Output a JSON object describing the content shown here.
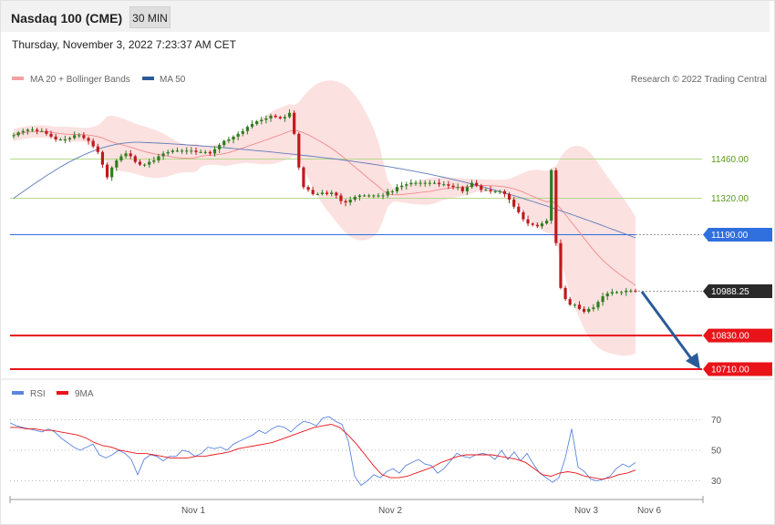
{
  "header": {
    "title": "Nasdaq 100 (CME)",
    "timeframe": "30 MIN",
    "datetime": "Thursday, November 3, 2022 7:23:37 AM CET"
  },
  "legend": {
    "ma20": "MA 20 + Bollinger Bands",
    "ma50": "MA 50",
    "credit": "Research © 2022 Trading Central",
    "rsi": "RSI",
    "rsi_ma": "9MA"
  },
  "colors": {
    "up": "#2e7d1e",
    "down": "#c0191c",
    "bands": "#fcdcdc",
    "ma20": "#f08a8a",
    "ma50": "#5d7ab8",
    "resistance": "#b5d98a",
    "pivot": "#2f6fde",
    "support": "#e8141a",
    "arrow": "#2b5b99",
    "last": "#2a2a2a"
  },
  "chart_data": [
    {
      "type": "candlestick",
      "indicators": [
        "MA 20 + Bollinger Bands",
        "MA 50"
      ],
      "levels": [
        {
          "label": "11460.00",
          "value": 11460.0,
          "kind": "resistance"
        },
        {
          "label": "11320.00",
          "value": 11320.0,
          "kind": "resistance"
        },
        {
          "label": "11190.00",
          "value": 11190.0,
          "kind": "pivot"
        },
        {
          "label": "10988.25",
          "value": 10988.25,
          "kind": "last"
        },
        {
          "label": "10830.00",
          "value": 10830.0,
          "kind": "support"
        },
        {
          "label": "10710.00",
          "value": 10710.0,
          "kind": "support"
        }
      ],
      "xticks": [
        "Nov 1",
        "Nov 2",
        "Nov 3",
        "Nov 6"
      ],
      "close_series": [
        11545,
        11555,
        11560,
        11565,
        11565,
        11560,
        11560,
        11550,
        11540,
        11530,
        11530,
        11530,
        11535,
        11545,
        11545,
        11535,
        11525,
        11505,
        11485,
        11440,
        11395,
        11430,
        11455,
        11470,
        11480,
        11470,
        11450,
        11440,
        11440,
        11450,
        11455,
        11470,
        11480,
        11485,
        11490,
        11490,
        11490,
        11490,
        11490,
        11485,
        11485,
        11485,
        11480,
        11495,
        11510,
        11525,
        11530,
        11540,
        11550,
        11560,
        11575,
        11585,
        11595,
        11600,
        11605,
        11615,
        11610,
        11605,
        11610,
        11625,
        11550,
        11430,
        11360,
        11350,
        11335,
        11335,
        11340,
        11335,
        11340,
        11330,
        11310,
        11305,
        11315,
        11325,
        11330,
        11330,
        11330,
        11330,
        11330,
        11330,
        11345,
        11345,
        11360,
        11365,
        11370,
        11375,
        11375,
        11375,
        11375,
        11375,
        11375,
        11370,
        11370,
        11365,
        11360,
        11360,
        11345,
        11360,
        11375,
        11365,
        11350,
        11350,
        11345,
        11345,
        11345,
        11335,
        11315,
        11290,
        11270,
        11245,
        11230,
        11225,
        11220,
        11230,
        11240,
        11420,
        11160,
        11000,
        10960,
        10940,
        10940,
        10925,
        10915,
        10925,
        10930,
        10950,
        10970,
        10980,
        10985,
        10985,
        10985,
        10990,
        10990,
        10988.25
      ],
      "ma50_start": 11320,
      "ma50_peak": 11520,
      "ma50_end": 11185,
      "rsi": {
        "levels": [
          70,
          50,
          30
        ],
        "rsi_series": [
          68,
          66,
          65,
          64,
          63,
          62,
          64,
          62,
          58,
          55,
          52,
          50,
          52,
          54,
          47,
          45,
          47,
          50,
          48,
          44,
          34,
          44,
          47,
          46,
          43,
          46,
          46,
          50,
          49,
          46,
          48,
          52,
          51,
          52,
          50,
          54,
          56,
          58,
          60,
          63,
          61,
          64,
          66,
          65,
          62,
          66,
          69,
          68,
          66,
          71,
          72,
          69,
          67,
          56,
          33,
          27,
          30,
          34,
          32,
          36,
          38,
          35,
          40,
          42,
          44,
          41,
          40,
          35,
          38,
          43,
          48,
          46,
          45,
          47,
          48,
          47,
          44,
          50,
          44,
          49,
          43,
          48,
          41,
          35,
          32,
          29,
          32,
          45,
          64,
          39,
          36,
          31,
          30,
          31,
          33,
          38,
          41,
          39,
          42
        ],
        "ma_series": [
          65,
          65,
          64,
          64,
          63,
          63,
          62,
          61,
          60,
          58,
          55,
          53,
          52,
          50,
          49,
          48,
          48,
          47,
          46,
          45,
          45,
          45,
          46,
          46,
          47,
          48,
          49,
          51,
          52,
          53,
          54,
          55,
          57,
          59,
          61,
          63,
          65,
          66,
          67,
          65,
          60,
          54,
          47,
          40,
          34,
          32,
          32,
          33,
          35,
          37,
          39,
          42,
          44,
          46,
          47,
          47,
          47,
          47,
          46,
          45,
          44,
          42,
          38,
          34,
          33,
          35,
          36,
          35,
          33,
          32,
          31,
          32,
          34,
          35,
          37
        ]
      }
    }
  ]
}
